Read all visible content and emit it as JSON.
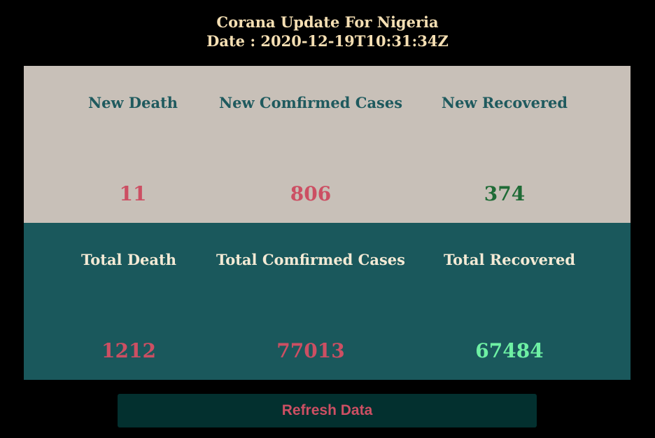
{
  "header": {
    "title": "Corana Update For Nigeria",
    "date": "Date : 2020-12-19T10:31:34Z"
  },
  "new_stats": {
    "death_label": "New Death",
    "death_value": "11",
    "confirmed_label": "New Comfirmed Cases",
    "confirmed_value": "806",
    "recovered_label": "New Recovered",
    "recovered_value": "374"
  },
  "total_stats": {
    "death_label": "Total Death",
    "death_value": "1212",
    "confirmed_label": "Total Comfirmed Cases",
    "confirmed_value": "77013",
    "recovered_label": "Total Recovered",
    "recovered_value": "67484"
  },
  "actions": {
    "refresh_label": "Refresh Data"
  },
  "colors": {
    "background": "#000000",
    "header_text": "#f5dfb3",
    "new_panel": "#c8c0b8",
    "total_panel": "#1a585c",
    "death_confirmed_value": "#cc4f63",
    "new_recovered_value": "#1f6b36",
    "total_recovered_value": "#6ef0a4",
    "button_bg": "#03302f"
  }
}
